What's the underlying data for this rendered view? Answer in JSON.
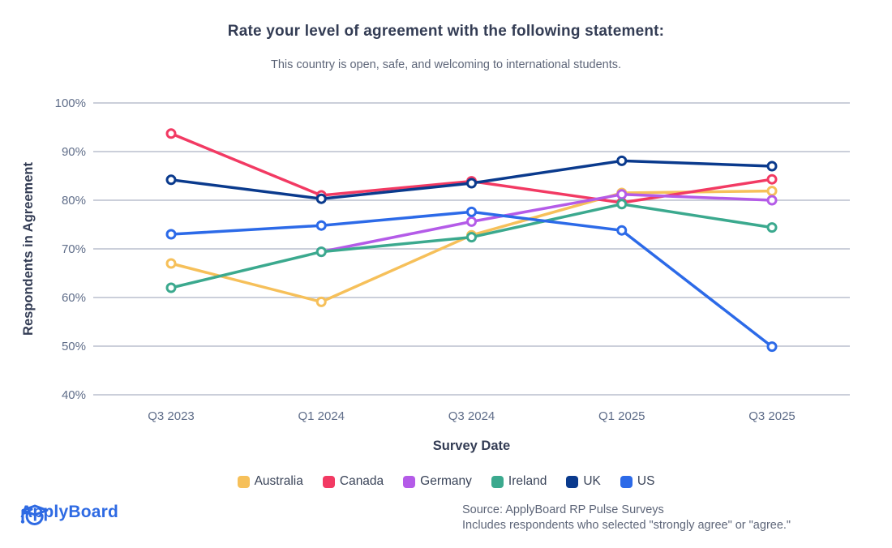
{
  "header": {
    "title": "Rate your level of agreement with the following statement:",
    "subtitle": "This country is open, safe, and welcoming to international students."
  },
  "chart_data": {
    "type": "line",
    "categories": [
      "Q3 2023",
      "Q1 2024",
      "Q3 2024",
      "Q1 2025",
      "Q3 2025"
    ],
    "series": [
      {
        "name": "Australia",
        "color": "#F6C05A",
        "values": [
          67,
          59.1,
          72.8,
          81.5,
          81.9
        ]
      },
      {
        "name": "Canada",
        "color": "#F23A63",
        "values": [
          93.7,
          81,
          83.9,
          79.5,
          84.3
        ]
      },
      {
        "name": "Germany",
        "color": "#B45BE8",
        "values": [
          null,
          69.4,
          75.6,
          81.2,
          80
        ]
      },
      {
        "name": "Ireland",
        "color": "#3BA98E",
        "values": [
          62,
          69.4,
          72.4,
          79.2,
          74.4
        ]
      },
      {
        "name": "UK",
        "color": "#0A3A8D",
        "values": [
          84.2,
          80.3,
          83.5,
          88.1,
          87
        ]
      },
      {
        "name": "US",
        "color": "#2C6AE8",
        "values": [
          73,
          74.8,
          77.6,
          73.8,
          49.9
        ]
      }
    ],
    "title": "Rate your level of agreement with the following statement:",
    "xlabel": "Survey Date",
    "ylabel": "Respondents in Agreement",
    "ylim": [
      40,
      100
    ],
    "ytick_step": 10,
    "ytick_suffix": "%",
    "grid": "horizontal",
    "legend_position": "bottom"
  },
  "style": {
    "gridline_color": "#CBCFDA",
    "tick_color": "#5F6D89",
    "brand_blue": "#2E6AE3"
  },
  "footer": {
    "logo_text": "ApplyBoard",
    "source_line1": "Source: ApplyBoard RP Pulse Surveys",
    "source_line2": "Includes respondents who selected \"strongly agree\" or \"agree.\""
  }
}
